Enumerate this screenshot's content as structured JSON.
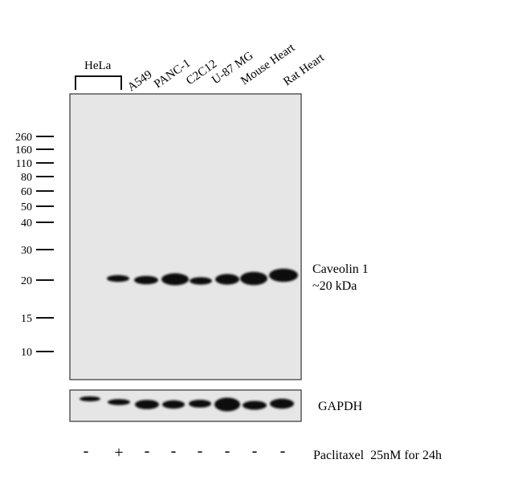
{
  "lanes": [
    {
      "label": "HeLa",
      "treatment": "-"
    },
    {
      "label": "HeLa",
      "treatment": "+"
    },
    {
      "label": "A549",
      "treatment": "-"
    },
    {
      "label": "PANC-1",
      "treatment": "-"
    },
    {
      "label": "C2C12",
      "treatment": "-"
    },
    {
      "label": "U-87 MG",
      "treatment": "-"
    },
    {
      "label": "Mouse Heart",
      "treatment": "-"
    },
    {
      "label": "Rat Heart",
      "treatment": "-"
    }
  ],
  "group_label": "HeLa",
  "lane_labels": [
    "A549",
    "PANC-1",
    "C2C12",
    "U-87 MG",
    "Mouse Heart",
    "Rat Heart"
  ],
  "mw_markers": [
    "260",
    "160",
    "110",
    "80",
    "60",
    "50",
    "40",
    "30",
    "20",
    "15",
    "10"
  ],
  "target": {
    "name": "Caveolin 1",
    "size": "~20 kDa"
  },
  "loading_control": "GAPDH",
  "treatment_label": "Paclitaxel  25nM for 24h",
  "treatments": [
    "-",
    "+",
    "-",
    "-",
    "-",
    "-",
    "-",
    "-"
  ],
  "colors": {
    "panel_background": "#e6e6e6",
    "band": "#111111",
    "border": "#333333"
  }
}
